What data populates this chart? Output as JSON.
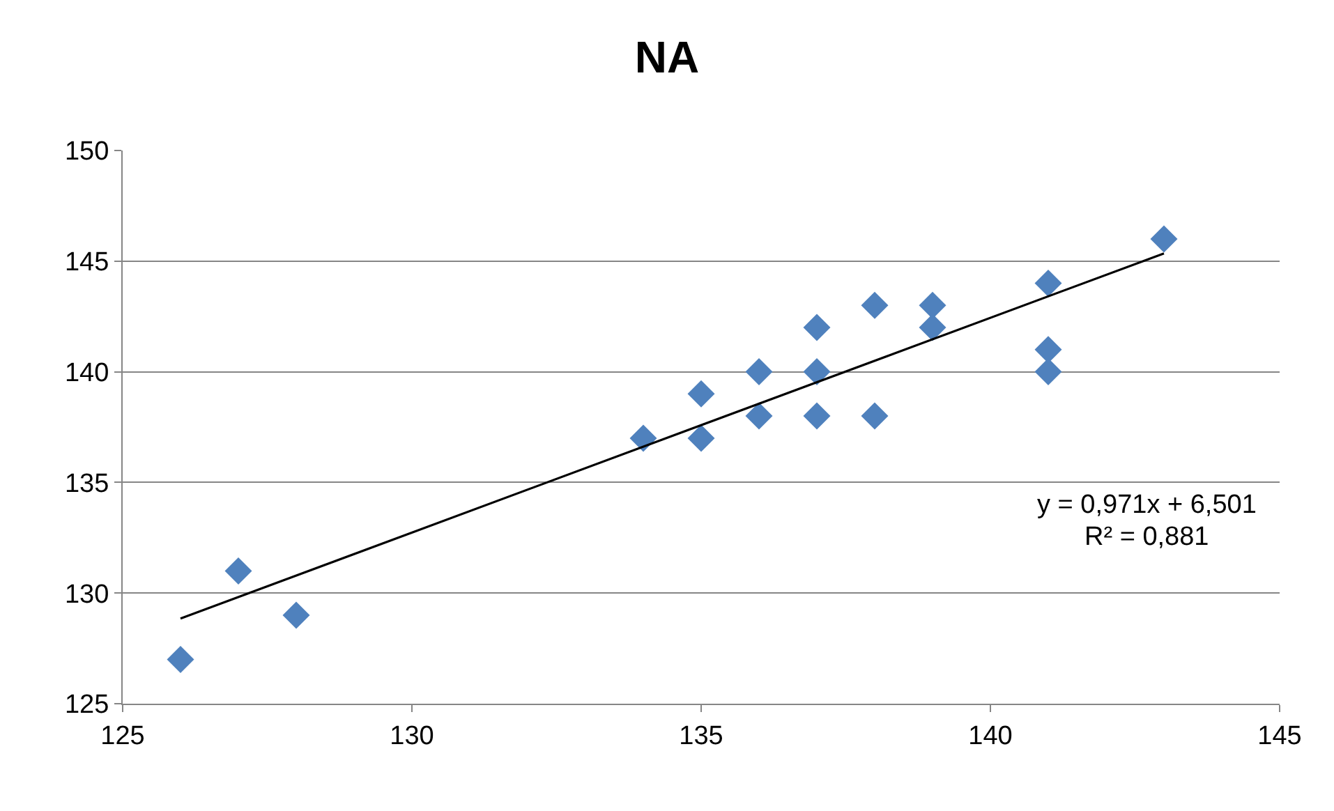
{
  "chart_data": {
    "type": "scatter",
    "title": "NA",
    "x": [
      126,
      127,
      128,
      134,
      135,
      135,
      136,
      136,
      137,
      137,
      137,
      138,
      138,
      139,
      139,
      141,
      141,
      141,
      143
    ],
    "series": [
      {
        "color": "#4f81bd",
        "marker": "diamond",
        "values": [
          127,
          131,
          129,
          137,
          139,
          137,
          140,
          138,
          142,
          140,
          138,
          143,
          138,
          143,
          142,
          144,
          141,
          140,
          146
        ]
      },
      {
        "type": "line",
        "color": "#000000",
        "marker": "none",
        "line_style": "solid",
        "x": [
          126,
          143
        ],
        "values": [
          128.85,
          145.35
        ]
      }
    ],
    "xlim": [
      125,
      145
    ],
    "xticks": [
      125,
      130,
      135,
      140,
      145
    ],
    "ylim": [
      125,
      150
    ],
    "yticks": [
      125,
      130,
      135,
      140,
      145,
      150
    ],
    "grid": "y",
    "legend": false,
    "annotations": [
      "y = 0,971x + 6,501",
      "R² = 0,881"
    ]
  }
}
